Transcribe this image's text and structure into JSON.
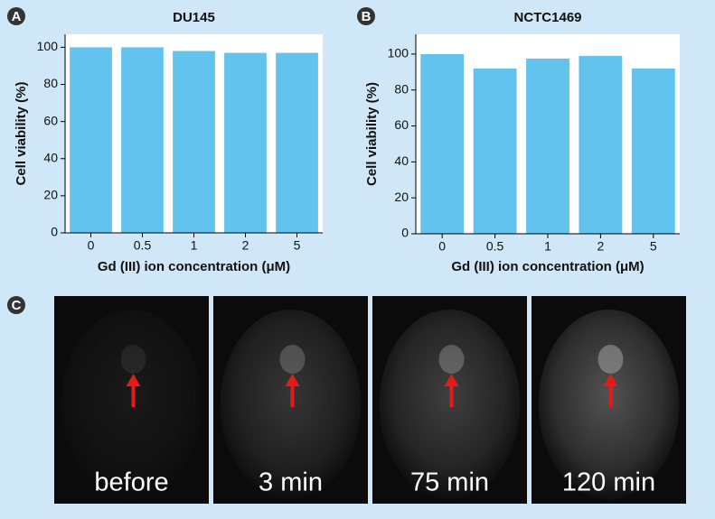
{
  "panel_labels": [
    "A",
    "B",
    "C"
  ],
  "chart_data": [
    {
      "type": "bar",
      "title": "DU145",
      "x_label": "Gd (III) ion concentration (μM)",
      "y_label": "Cell viability (%)",
      "categories": [
        "0",
        "0.5",
        "1",
        "2",
        "5"
      ],
      "values": [
        100,
        100,
        98,
        97,
        97
      ],
      "color": "#62c3ee",
      "ylim": [
        0,
        107
      ],
      "yticks": [
        0,
        20,
        40,
        60,
        80,
        100
      ],
      "grid": false
    },
    {
      "type": "bar",
      "title": "NCTC1469",
      "x_label": "Gd (III) ion concentration (μM)",
      "y_label": "Cell viability (%)",
      "categories": [
        "0",
        "0.5",
        "1",
        "2",
        "5"
      ],
      "values": [
        100,
        92,
        97.5,
        99,
        92
      ],
      "color": "#62c3ee",
      "ylim": [
        0,
        111
      ],
      "yticks": [
        0,
        20,
        40,
        60,
        80,
        100
      ],
      "grid": false
    }
  ],
  "images": [
    {
      "label": "before"
    },
    {
      "label": "3 min"
    },
    {
      "label": "75 min"
    },
    {
      "label": "120 min"
    }
  ]
}
